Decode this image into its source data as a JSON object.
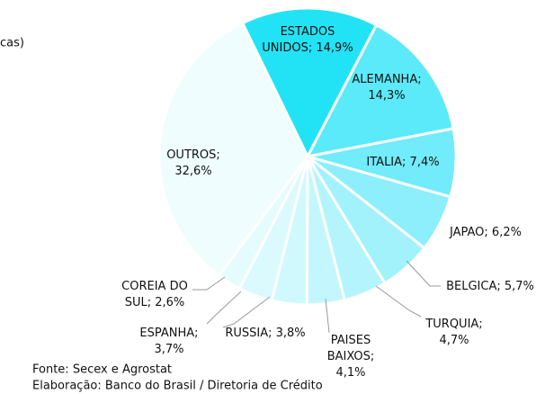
{
  "chart_data": {
    "type": "pie",
    "title": "cas)",
    "categories": [
      "ESTADOS UNIDOS",
      "ALEMANHA",
      "ITALIA",
      "JAPAO",
      "BELGICA",
      "TURQUIA",
      "PAISES BAIXOS",
      "RUSSIA",
      "ESPANHA",
      "COREIA DO SUL",
      "OUTROS"
    ],
    "values": [
      14.9,
      14.3,
      7.4,
      6.2,
      5.7,
      4.7,
      4.1,
      3.8,
      3.7,
      2.6,
      32.6
    ],
    "value_labels": [
      "ESTADOS\nUNIDOS; 14,9%",
      "ALEMANHA;\n14,3%",
      "ITALIA; 7,4%",
      "JAPAO; 6,2%",
      "BELGICA; 5,7%",
      "TURQUIA;\n4,7%",
      "PAISES\nBAIXOS;\n4,1%",
      "RUSSIA; 3,8%",
      "ESPANHA;\n3,7%",
      "COREIA DO\nSUL; 2,6%",
      "OUTROS;\n32,6%"
    ],
    "colors": [
      "#22e3f6",
      "#5aeaf9",
      "#72ebfa",
      "#8ceffb",
      "#a2f2fc",
      "#b4f5fd",
      "#c4f7fd",
      "#d0f9fe",
      "#dafafe",
      "#e4fcfe",
      "#f0fdff"
    ],
    "notes": [
      "Fonte: Secex e Agrostat",
      "Elaboração: Banco do Brasil / Diretoria de Crédito"
    ]
  }
}
